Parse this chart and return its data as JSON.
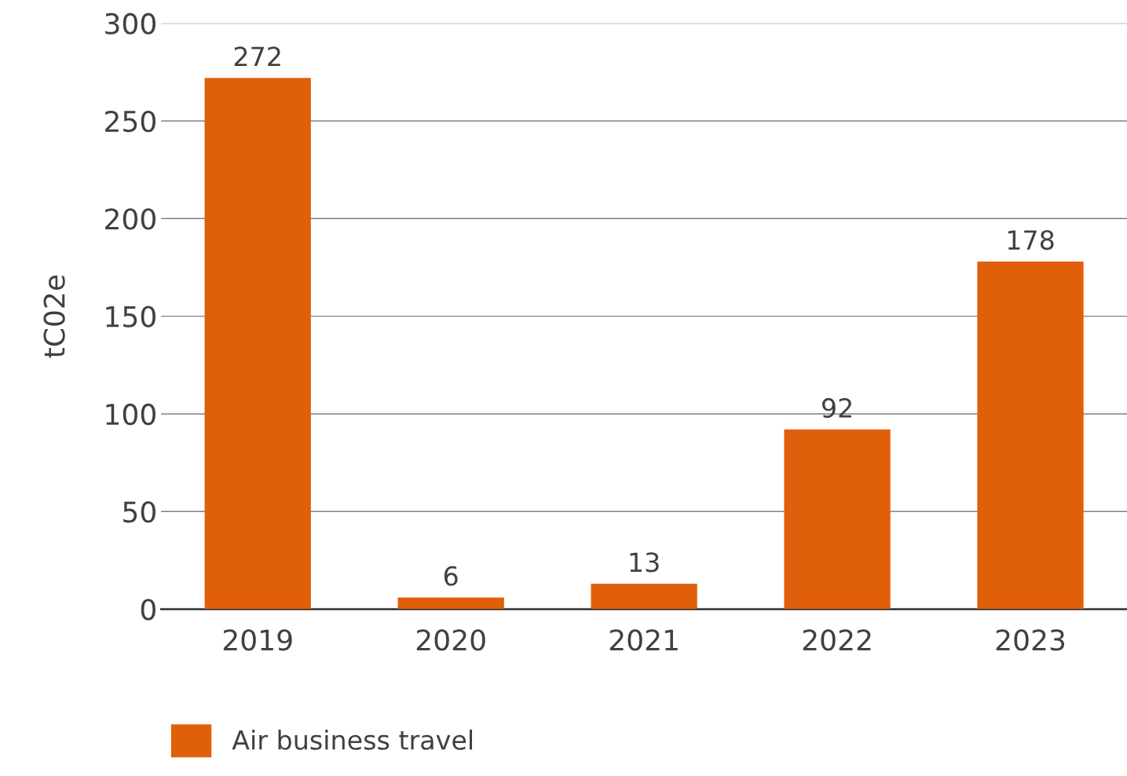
{
  "chart_data": {
    "type": "bar",
    "ylabel": "tC02e",
    "categories": [
      "2019",
      "2020",
      "2021",
      "2022",
      "2023"
    ],
    "series": [
      {
        "name": "Air business travel",
        "color": "#e05f0a",
        "values": [
          272,
          6,
          13,
          92,
          178
        ]
      }
    ],
    "ylim": [
      0,
      300
    ],
    "yticks": [
      0,
      50,
      100,
      150,
      200,
      250,
      300
    ],
    "grid": "y",
    "legend": "bottom left",
    "data_labels": true
  }
}
